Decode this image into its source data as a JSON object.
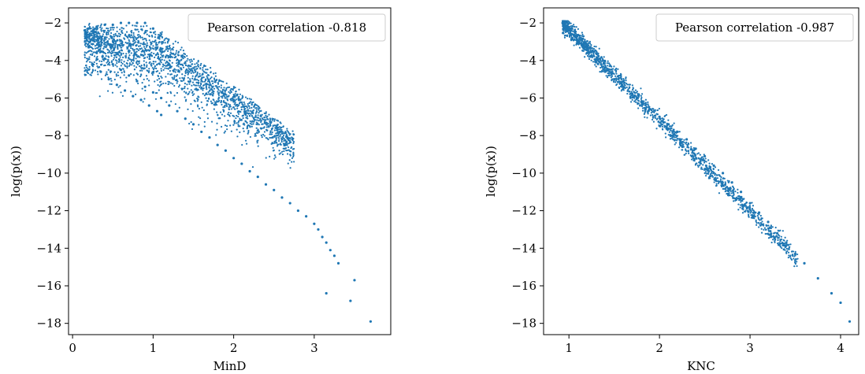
{
  "chart_data": [
    {
      "type": "scatter",
      "xlabel": "MinD",
      "ylabel": "log(p(x))",
      "xlim": [
        -0.05,
        3.95
      ],
      "ylim": [
        -18.6,
        -1.2
      ],
      "xticks": [
        0,
        1,
        2,
        3
      ],
      "xtick_labels": [
        "0",
        "1",
        "2",
        "3"
      ],
      "yticks": [
        -2,
        -4,
        -6,
        -8,
        -10,
        -12,
        -14,
        -16,
        -18
      ],
      "ytick_labels": [
        "−2",
        "−4",
        "−6",
        "−8",
        "−10",
        "−12",
        "−14",
        "−16",
        "−18"
      ],
      "legend": "Pearson correlation -0.818",
      "legend_position": "upper-right",
      "color": "#1f77b4",
      "grid": false,
      "x": [
        0.15,
        0.2,
        0.3,
        0.4,
        0.5,
        0.6,
        0.7,
        0.8,
        0.9,
        1.0,
        0.25,
        0.35,
        0.45,
        0.55,
        0.65,
        0.75,
        0.85,
        0.95,
        1.05,
        1.1,
        0.2,
        0.3,
        0.4,
        0.5,
        0.6,
        0.7,
        0.8,
        0.9,
        1.0,
        1.1,
        1.2,
        1.3,
        1.4,
        1.5,
        1.6,
        1.7,
        1.8,
        1.9,
        2.0,
        2.1,
        2.2,
        2.3,
        2.4,
        2.5,
        2.6,
        2.7,
        2.8,
        2.9,
        3.0,
        3.05,
        3.1,
        3.15,
        3.2,
        3.25,
        3.3,
        3.5,
        3.15,
        3.45,
        3.7
      ],
      "y": [
        -2.4,
        -2.3,
        -2.2,
        -2.1,
        -2.1,
        -2.0,
        -2.0,
        -2.0,
        -2.0,
        -2.3,
        -4.2,
        -4.6,
        -5.0,
        -5.3,
        -5.6,
        -5.9,
        -6.1,
        -6.4,
        -6.7,
        -6.9,
        -3.3,
        -3.6,
        -3.9,
        -4.2,
        -4.5,
        -4.8,
        -5.1,
        -5.4,
        -5.7,
        -6.0,
        -6.4,
        -6.7,
        -7.1,
        -7.4,
        -7.8,
        -8.1,
        -8.5,
        -8.8,
        -9.2,
        -9.5,
        -9.9,
        -10.2,
        -10.6,
        -10.9,
        -11.3,
        -11.6,
        -12.0,
        -12.3,
        -12.7,
        -13.0,
        -13.4,
        -13.7,
        -14.1,
        -14.4,
        -14.8,
        -15.7,
        -16.4,
        -16.8,
        -17.9
      ]
    },
    {
      "type": "scatter",
      "xlabel": "KNC",
      "ylabel": "log(p(x))",
      "xlim": [
        0.72,
        4.2
      ],
      "ylim": [
        -18.6,
        -1.2
      ],
      "xticks": [
        1,
        2,
        3,
        4
      ],
      "xtick_labels": [
        "1",
        "2",
        "3",
        "4"
      ],
      "yticks": [
        -2,
        -4,
        -6,
        -8,
        -10,
        -12,
        -14,
        -16,
        -18
      ],
      "ytick_labels": [
        "−2",
        "−4",
        "−6",
        "−8",
        "−10",
        "−12",
        "−14",
        "−16",
        "−18"
      ],
      "legend": "Pearson correlation -0.987",
      "legend_position": "upper-right",
      "color": "#1f77b4",
      "grid": false,
      "x": [
        0.93,
        0.95,
        1.0,
        1.1,
        1.2,
        1.3,
        1.4,
        1.5,
        1.6,
        1.7,
        1.8,
        1.9,
        2.0,
        2.1,
        2.2,
        2.3,
        2.4,
        2.5,
        2.6,
        2.7,
        2.8,
        2.9,
        3.0,
        3.1,
        3.2,
        3.3,
        3.4,
        3.5,
        3.6,
        3.75,
        3.9,
        4.0,
        4.1
      ],
      "y": [
        -2.0,
        -2.1,
        -2.4,
        -3.0,
        -3.6,
        -4.1,
        -4.6,
        -5.0,
        -5.4,
        -5.8,
        -6.2,
        -6.6,
        -7.0,
        -7.4,
        -7.8,
        -8.2,
        -8.7,
        -9.1,
        -9.6,
        -10.0,
        -10.5,
        -11.0,
        -11.6,
        -12.1,
        -12.6,
        -13.2,
        -13.7,
        -14.3,
        -14.8,
        -15.6,
        -16.4,
        -16.9,
        -17.9
      ]
    }
  ]
}
